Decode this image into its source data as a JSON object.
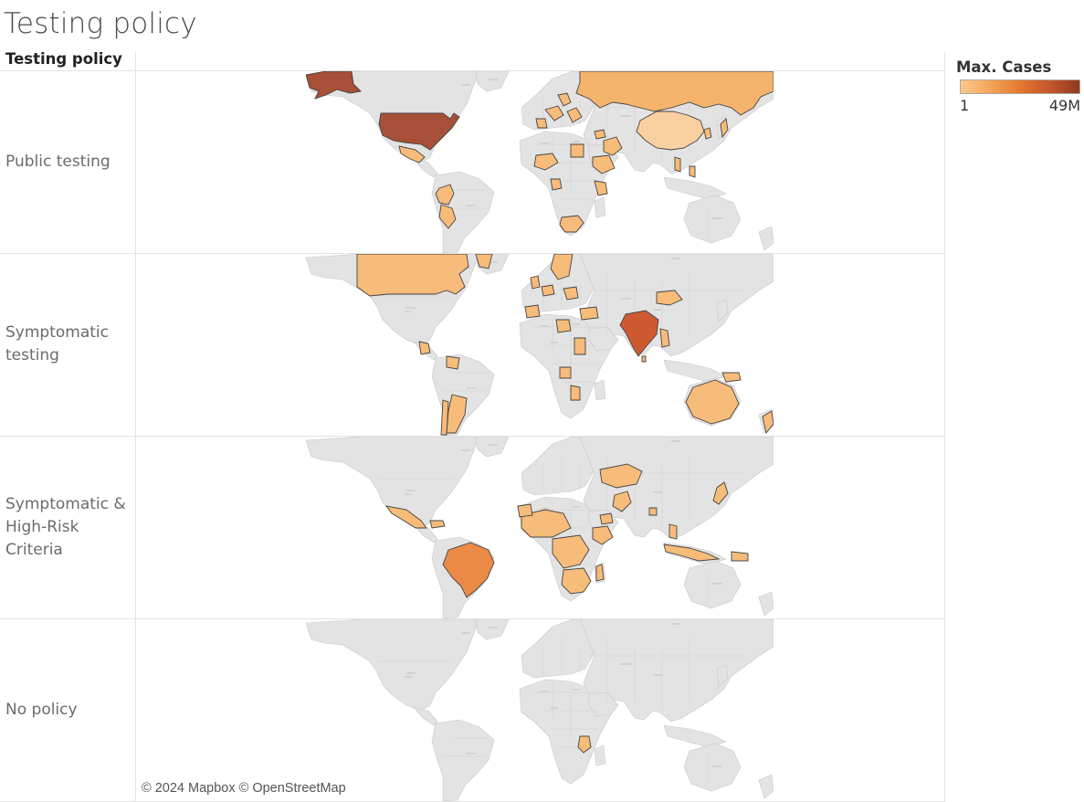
{
  "title": "Testing policy",
  "row_header": "Testing policy",
  "rows": [
    {
      "label": "Public testing"
    },
    {
      "label": "Symptomatic testing"
    },
    {
      "label": "Symptomatic & High-Risk Criteria"
    },
    {
      "label": "No policy"
    }
  ],
  "legend": {
    "title": "Max. Cases",
    "min_label": "1",
    "max_label": "49M",
    "colors": [
      "#fbc989",
      "#f5a45a",
      "#e6772f",
      "#c5562a",
      "#8f3a20"
    ]
  },
  "attribution": "© 2024 Mapbox © OpenStreetMap",
  "colors": {
    "land": "#e3e3e3",
    "border": "#c8c8c8",
    "highlight_light": "#f7bb7a",
    "highlight_stroke": "#444444",
    "usa": "#a74f37",
    "india": "#cf5a32",
    "brazil": "#ea8a46"
  }
}
